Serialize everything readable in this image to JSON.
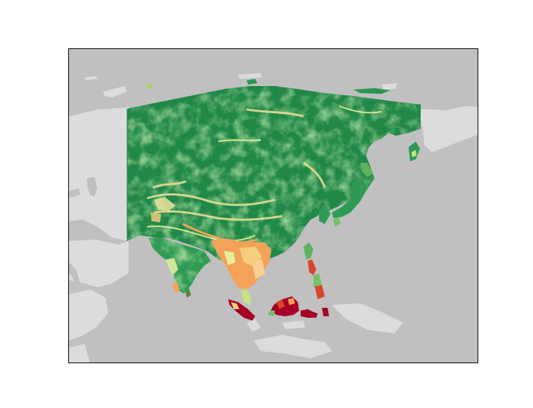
{
  "map": {
    "ocean_color": "#c0c0c0",
    "land_color": "#dcdcdc",
    "frame_color": "#000000",
    "colormap": "RdYlGn",
    "palette": {
      "deep_green": "#1a7f43",
      "green": "#2f9a55",
      "light_green": "#76c26b",
      "yellow_green": "#c8e27f",
      "pale_yellow": "#f6efa6",
      "orange": "#f7a35a",
      "red": "#d6452d",
      "dark_red": "#a50026"
    },
    "region_visible": "Asia",
    "legend_visible": false,
    "title_visible": false
  }
}
